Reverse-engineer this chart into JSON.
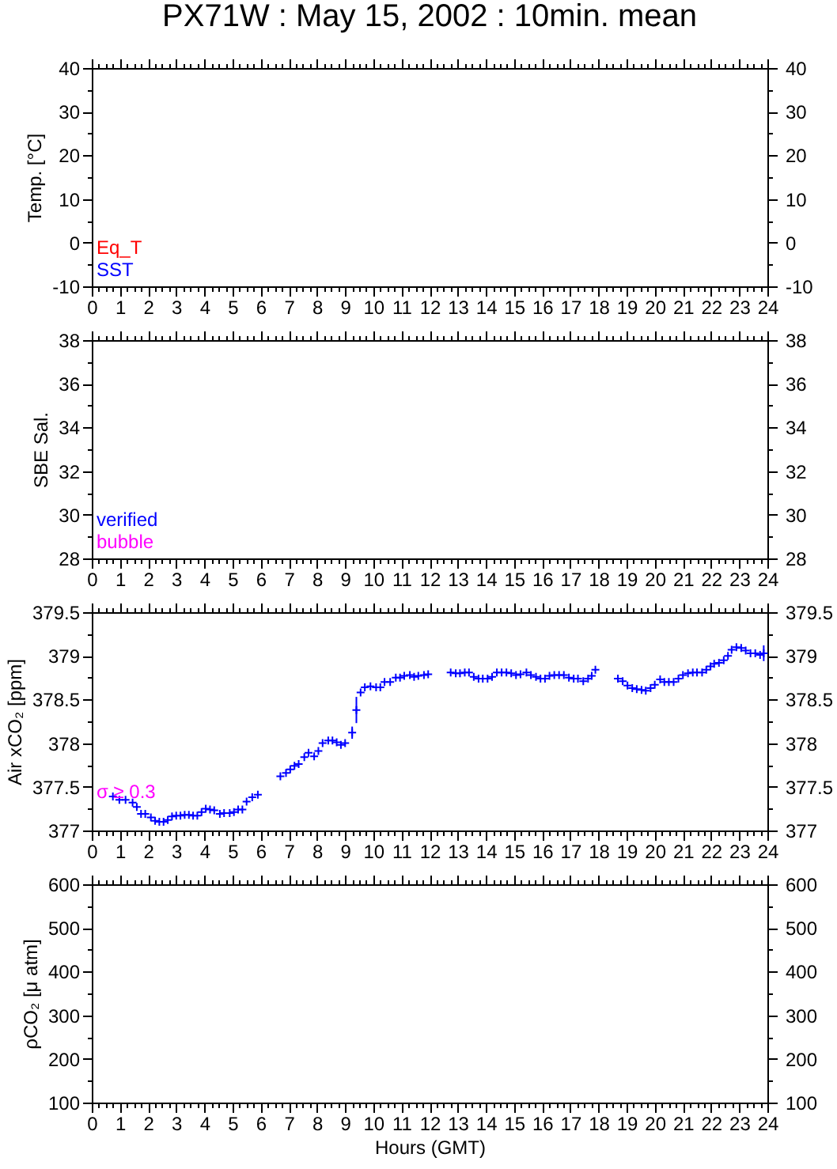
{
  "chart_data": [
    {
      "type": "scatter",
      "title": "PX71W : May 15, 2002 : 10min. mean",
      "ylabel": "Temp. [°C]",
      "xlim": [
        0,
        24
      ],
      "xticks": [
        0,
        1,
        2,
        3,
        4,
        5,
        6,
        7,
        8,
        9,
        10,
        11,
        12,
        13,
        14,
        15,
        16,
        17,
        18,
        19,
        20,
        21,
        22,
        23,
        24
      ],
      "ylim": [
        -10,
        40
      ],
      "yticks": [
        -10,
        0,
        10,
        20,
        30,
        40
      ],
      "y2lim": [
        -10,
        40
      ],
      "y2ticks": [
        -10,
        0,
        10,
        20,
        30,
        40
      ],
      "series": [
        {
          "name": "Eq_T",
          "color": "#ff0000",
          "x": [
            null
          ],
          "values": [
            null
          ]
        },
        {
          "name": "SST",
          "color": "#0000ff",
          "x": [
            null
          ],
          "values": [
            null
          ]
        }
      ]
    },
    {
      "type": "scatter",
      "ylabel": "SBE Sal.",
      "xlim": [
        0,
        24
      ],
      "xticks": [
        0,
        1,
        2,
        3,
        4,
        5,
        6,
        7,
        8,
        9,
        10,
        11,
        12,
        13,
        14,
        15,
        16,
        17,
        18,
        19,
        20,
        21,
        22,
        23,
        24
      ],
      "ylim": [
        28,
        38
      ],
      "yticks": [
        28,
        30,
        32,
        34,
        36,
        38
      ],
      "y2lim": [
        28,
        38
      ],
      "y2ticks": [
        28,
        30,
        32,
        34,
        36,
        38
      ],
      "series": [
        {
          "name": "verified",
          "color": "#0000ff",
          "x": [
            null
          ],
          "values": [
            null
          ]
        },
        {
          "name": "bubble",
          "color": "#ff00ff",
          "x": [
            null
          ],
          "values": [
            null
          ]
        }
      ]
    },
    {
      "type": "scatter",
      "ylabel": "Air xCO₂ [ppm]",
      "xlim": [
        0,
        24
      ],
      "xticks": [
        0,
        1,
        2,
        3,
        4,
        5,
        6,
        7,
        8,
        9,
        10,
        11,
        12,
        13,
        14,
        15,
        16,
        17,
        18,
        19,
        20,
        21,
        22,
        23,
        24
      ],
      "ylim": [
        377,
        379.5
      ],
      "yticks": [
        377,
        377.5,
        378,
        378.5,
        379,
        379.5
      ],
      "y2lim": [
        377,
        379.5
      ],
      "y2ticks": [
        377,
        377.5,
        378,
        378.5,
        379,
        379.5
      ],
      "marker": "cross",
      "series": [
        {
          "name": "σ ≥ 0.3",
          "color": "#ff00ff"
        },
        {
          "color": "#0000ff",
          "x": [
            0.75,
            0.98,
            1.2,
            1.45,
            1.6,
            1.75,
            1.9,
            2.1,
            2.25,
            2.4,
            2.55,
            2.7,
            2.85,
            3.0,
            3.15,
            3.3,
            3.45,
            3.6,
            3.75,
            3.9,
            4.05,
            4.2,
            4.35,
            4.55,
            4.7,
            4.9,
            5.05,
            5.2,
            5.35,
            5.5,
            5.7,
            5.9,
            6.7,
            6.9,
            7.05,
            7.2,
            7.35,
            7.55,
            7.7,
            7.9,
            8.05,
            8.2,
            8.4,
            8.55,
            8.7,
            8.85,
            9.0,
            9.25,
            9.4,
            9.55,
            9.7,
            9.9,
            10.1,
            10.25,
            10.4,
            10.6,
            10.8,
            10.95,
            11.1,
            11.3,
            11.45,
            11.6,
            11.8,
            11.95,
            12.75,
            12.93,
            13.08,
            13.25,
            13.4,
            13.57,
            13.74,
            13.89,
            14.06,
            14.22,
            14.39,
            14.56,
            14.73,
            14.9,
            15.07,
            15.23,
            15.44,
            15.6,
            15.78,
            15.94,
            16.1,
            16.26,
            16.43,
            16.6,
            16.77,
            16.95,
            17.12,
            17.27,
            17.46,
            17.63,
            17.76,
            17.89,
            18.69,
            18.86,
            19.03,
            19.2,
            19.36,
            19.53,
            19.68,
            19.85,
            20.0,
            20.19,
            20.34,
            20.5,
            20.67,
            20.84,
            21.0,
            21.18,
            21.35,
            21.5,
            21.68,
            21.83,
            21.98,
            22.11,
            22.28,
            22.45,
            22.6,
            22.73,
            22.9,
            23.07,
            23.23,
            23.4,
            23.57,
            23.74,
            23.87
          ],
          "values": [
            377.39,
            377.35,
            377.35,
            377.32,
            377.27,
            377.19,
            377.19,
            377.15,
            377.11,
            377.1,
            377.1,
            377.12,
            377.16,
            377.17,
            377.17,
            377.18,
            377.18,
            377.17,
            377.17,
            377.21,
            377.25,
            377.24,
            377.23,
            377.19,
            377.2,
            377.2,
            377.21,
            377.24,
            377.24,
            377.33,
            377.38,
            377.41,
            377.62,
            377.66,
            377.7,
            377.74,
            377.76,
            377.84,
            377.89,
            377.85,
            377.91,
            378.0,
            378.03,
            378.03,
            378.01,
            377.98,
            378.0,
            378.12,
            378.38,
            378.58,
            378.64,
            378.65,
            378.64,
            378.64,
            378.7,
            378.7,
            378.75,
            378.75,
            378.77,
            378.78,
            378.76,
            378.77,
            378.78,
            378.79,
            378.81,
            378.8,
            378.8,
            378.81,
            378.81,
            378.76,
            378.74,
            378.74,
            378.74,
            378.76,
            378.81,
            378.81,
            378.81,
            378.8,
            378.78,
            378.79,
            378.81,
            378.78,
            378.76,
            378.74,
            378.74,
            378.77,
            378.78,
            378.78,
            378.78,
            378.75,
            378.74,
            378.74,
            378.71,
            378.74,
            378.77,
            378.84,
            378.74,
            378.71,
            378.66,
            378.63,
            378.62,
            378.61,
            378.6,
            378.63,
            378.67,
            378.73,
            378.7,
            378.7,
            378.7,
            378.74,
            378.78,
            378.8,
            378.81,
            378.81,
            378.81,
            378.84,
            378.88,
            378.91,
            378.92,
            378.95,
            379.0,
            379.07,
            379.1,
            379.09,
            379.06,
            379.03,
            379.03,
            379.01,
            379.03
          ],
          "errors": [
            null,
            null,
            null,
            null,
            null,
            null,
            null,
            null,
            null,
            null,
            null,
            null,
            null,
            null,
            null,
            null,
            null,
            null,
            null,
            null,
            null,
            null,
            null,
            null,
            null,
            null,
            null,
            null,
            null,
            null,
            null,
            null,
            null,
            null,
            null,
            null,
            null,
            null,
            null,
            null,
            null,
            null,
            null,
            null,
            null,
            null,
            null,
            0.07,
            0.15,
            null,
            null,
            null,
            null,
            null,
            null,
            null,
            null,
            null,
            null,
            null,
            null,
            null,
            null,
            null,
            null,
            null,
            null,
            null,
            null,
            null,
            null,
            null,
            null,
            null,
            null,
            null,
            null,
            null,
            null,
            null,
            null,
            null,
            null,
            null,
            null,
            null,
            null,
            null,
            null,
            null,
            null,
            null,
            null,
            null,
            null,
            null,
            null,
            null,
            null,
            null,
            null,
            null,
            null,
            null,
            null,
            null,
            null,
            null,
            null,
            null,
            null,
            null,
            null,
            null,
            null,
            null,
            null,
            null,
            null,
            null,
            null,
            null,
            null,
            null,
            null,
            null,
            null,
            null,
            0.09
          ]
        }
      ]
    },
    {
      "type": "scatter",
      "ylabel": "ρCO₂ [μ atm]",
      "xlabel": "Hours (GMT)",
      "xlim": [
        0,
        24
      ],
      "xticks": [
        0,
        1,
        2,
        3,
        4,
        5,
        6,
        7,
        8,
        9,
        10,
        11,
        12,
        13,
        14,
        15,
        16,
        17,
        18,
        19,
        20,
        21,
        22,
        23,
        24
      ],
      "ylim": [
        100,
        600
      ],
      "yticks": [
        100,
        200,
        300,
        400,
        500,
        600
      ],
      "y2lim": [
        100,
        600
      ],
      "y2ticks": [
        100,
        200,
        300,
        400,
        500,
        600
      ]
    }
  ]
}
